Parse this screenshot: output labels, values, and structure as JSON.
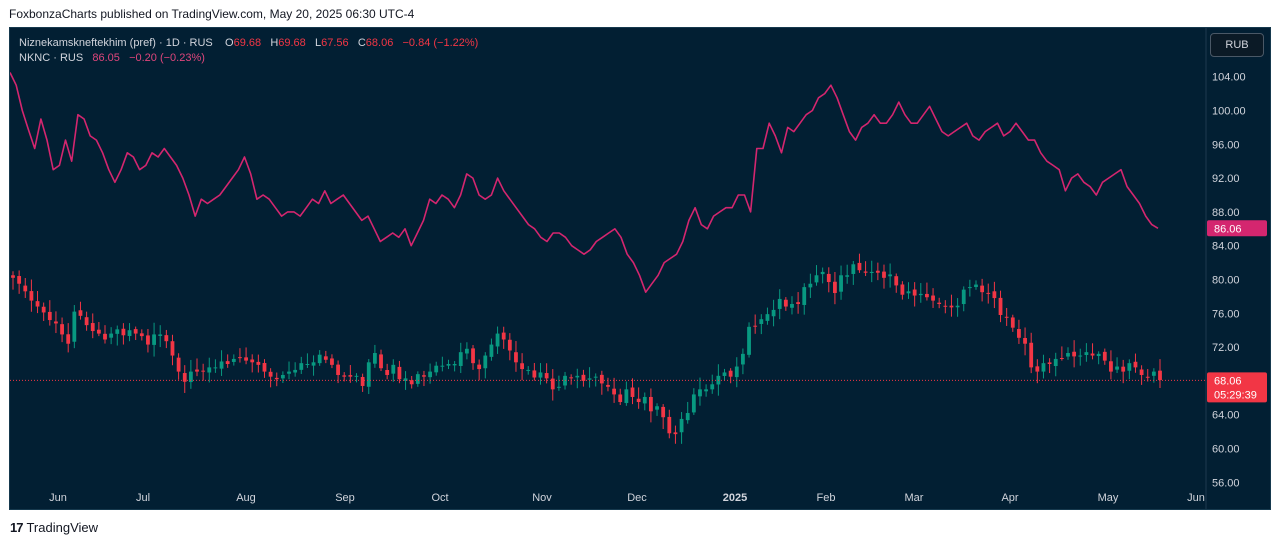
{
  "caption": "FoxbonzaCharts published on TradingView.com, May 20, 2025 06:30 UTC-4",
  "footer": {
    "logo_glyph": "17",
    "brand": "TradingView"
  },
  "currency_button": "RUB",
  "legend": {
    "main_symbol": "Niznekamskneftekhim (pref) · 1D · RUS",
    "o_label": "O",
    "o_val": "69.68",
    "h_label": "H",
    "h_val": "69.68",
    "l_label": "L",
    "l_val": "67.56",
    "c_label": "C",
    "c_val": "68.06",
    "change": "−0.84 (−1.22%)",
    "compare_symbol": "NKNC · RUS",
    "compare_val": "86.05",
    "compare_change": "−0.20 (−0.23%)"
  },
  "colors": {
    "background": "#021f33",
    "up": "#089981",
    "down": "#f23645",
    "compare_line": "#d4266f",
    "axis_text": "#d1d4dc"
  },
  "chart_data": {
    "type": "candlestick",
    "y_axis_ticks": [
      "104.00",
      "100.00",
      "96.00",
      "92.00",
      "88.00",
      "84.00",
      "80.00",
      "76.00",
      "72.00",
      "68.00",
      "64.00",
      "60.00",
      "56.00"
    ],
    "ylim": [
      56,
      108
    ],
    "x_axis_ticks": [
      "Jun",
      "Jul",
      "Aug",
      "Sep",
      "Oct",
      "Nov",
      "Dec",
      "2025",
      "Feb",
      "Mar",
      "Apr",
      "May",
      "Jun"
    ],
    "last_price_label": "68.06",
    "countdown_label": "05:29:39",
    "compare_last_label": "86.06",
    "series": [
      {
        "name": "Niznekamskneftekhim (pref)",
        "kind": "candles",
        "close_path": [
          80.2,
          79.5,
          78.6,
          77.5,
          76.8,
          76.1,
          75.2,
          74.8,
          73.5,
          72.4,
          76.2,
          75.7,
          74.6,
          73.9,
          73.6,
          72.9,
          73.6,
          74.1,
          73.4,
          74.0,
          73.6,
          73.3,
          72.3,
          73.5,
          73.5,
          72.7,
          71.0,
          69.1,
          67.9,
          69.1,
          69.1,
          69.1,
          69.6,
          69.6,
          70.3,
          70.0,
          70.6,
          70.8,
          70.4,
          70.2,
          69.9,
          69.1,
          68.5,
          68.2,
          68.7,
          69.1,
          69.3,
          70.1,
          70.0,
          70.2,
          71.1,
          70.5,
          69.9,
          68.7,
          68.5,
          68.5,
          68.6,
          67.4,
          70.2,
          71.3,
          69.5,
          68.7,
          69.9,
          68.2,
          68.3,
          67.6,
          68.8,
          68.5,
          69.1,
          69.8,
          69.8,
          70.0,
          70.0,
          71.4,
          71.8,
          70.1,
          69.4,
          71.0,
          72.3,
          73.6,
          72.9,
          71.6,
          70.2,
          69.4,
          69.3,
          68.4,
          69.0,
          68.3,
          67.0,
          67.3,
          68.6,
          68.4,
          68.6,
          68.0,
          68.3,
          68.5,
          67.7,
          67.3,
          66.4,
          65.5,
          67.0,
          66.1,
          65.5,
          66.1,
          64.4,
          65.0,
          63.7,
          61.8,
          61.7,
          63.5,
          64.2,
          66.4,
          67.0,
          67.0,
          67.6,
          68.6,
          69.0,
          68.5,
          69.7,
          71.2,
          74.4,
          74.5,
          75.3,
          75.9,
          76.4,
          77.7,
          76.8,
          77.1,
          77.1,
          79.1,
          79.5,
          80.5,
          80.9,
          79.7,
          78.4,
          80.5,
          80.5,
          81.8,
          81.1,
          80.8,
          80.9,
          80.8,
          80.2,
          80.6,
          79.3,
          78.2,
          78.6,
          78.1,
          78.3,
          77.9,
          77.5,
          77.1,
          76.8,
          76.7,
          76.9,
          78.8,
          79.1,
          79.4,
          78.5,
          78.4,
          77.8,
          75.8,
          75.5,
          74.3,
          73.1,
          72.4,
          69.6,
          69.1,
          70.1,
          70.0,
          70.6,
          70.7,
          71.3,
          70.9,
          71.0,
          71.4,
          71.0,
          71.2,
          70.4,
          69.1,
          69.7,
          69.1,
          70.1,
          69.6,
          68.7,
          68.4,
          69.1,
          68.1
        ]
      },
      {
        "name": "NKNC · RUS",
        "kind": "line",
        "values": [
          104.5,
          103.0,
          100.0,
          97.7,
          95.5,
          99.0,
          96.5,
          93.0,
          93.5,
          96.5,
          94.0,
          99.5,
          99.0,
          97.0,
          96.5,
          95.0,
          93.0,
          91.5,
          93.0,
          95.0,
          94.5,
          93.0,
          93.5,
          95.0,
          94.5,
          95.5,
          94.5,
          93.5,
          92.0,
          90.0,
          87.5,
          89.5,
          89.0,
          89.5,
          90.0,
          91.0,
          92.0,
          93.0,
          94.5,
          92.5,
          89.5,
          90.0,
          89.5,
          88.5,
          87.5,
          88.0,
          88.0,
          87.5,
          88.5,
          89.5,
          89.0,
          90.5,
          89.0,
          89.5,
          90.0,
          89.0,
          88.0,
          87.0,
          87.5,
          86.0,
          84.5,
          85.0,
          85.5,
          85.0,
          86.0,
          84.0,
          85.5,
          87.0,
          89.5,
          89.0,
          90.0,
          89.5,
          88.5,
          90.0,
          92.5,
          92.0,
          90.0,
          89.5,
          90.0,
          92.0,
          90.5,
          89.5,
          88.5,
          87.5,
          86.5,
          86.0,
          85.0,
          84.5,
          85.5,
          85.5,
          85.0,
          84.0,
          83.5,
          83.0,
          83.5,
          84.5,
          85.0,
          85.5,
          86.0,
          85.0,
          83.0,
          82.0,
          80.5,
          78.5,
          79.5,
          80.5,
          82.0,
          82.5,
          83.0,
          84.5,
          87.0,
          88.5,
          86.5,
          86.0,
          87.5,
          88.0,
          88.5,
          88.5,
          90.0,
          90.0,
          88.0,
          95.5,
          95.5,
          98.5,
          97.0,
          95.0,
          98.0,
          97.5,
          98.5,
          99.5,
          100.0,
          101.5,
          102.0,
          103.0,
          101.5,
          99.5,
          97.5,
          96.5,
          98.0,
          98.5,
          99.5,
          98.5,
          98.5,
          99.5,
          101.0,
          99.5,
          98.5,
          98.5,
          99.5,
          100.5,
          99.0,
          97.5,
          97.0,
          97.5,
          98.0,
          98.5,
          97.0,
          96.5,
          97.5,
          98.0,
          98.5,
          97.0,
          97.5,
          98.5,
          97.5,
          96.5,
          96.5,
          95.0,
          94.0,
          93.5,
          93.0,
          90.5,
          92.0,
          92.5,
          91.5,
          91.0,
          90.0,
          91.5,
          92.0,
          92.5,
          93.0,
          91.0,
          90.0,
          89.0,
          87.5,
          86.5,
          86.06
        ],
        "last_value": 86.06
      }
    ]
  }
}
